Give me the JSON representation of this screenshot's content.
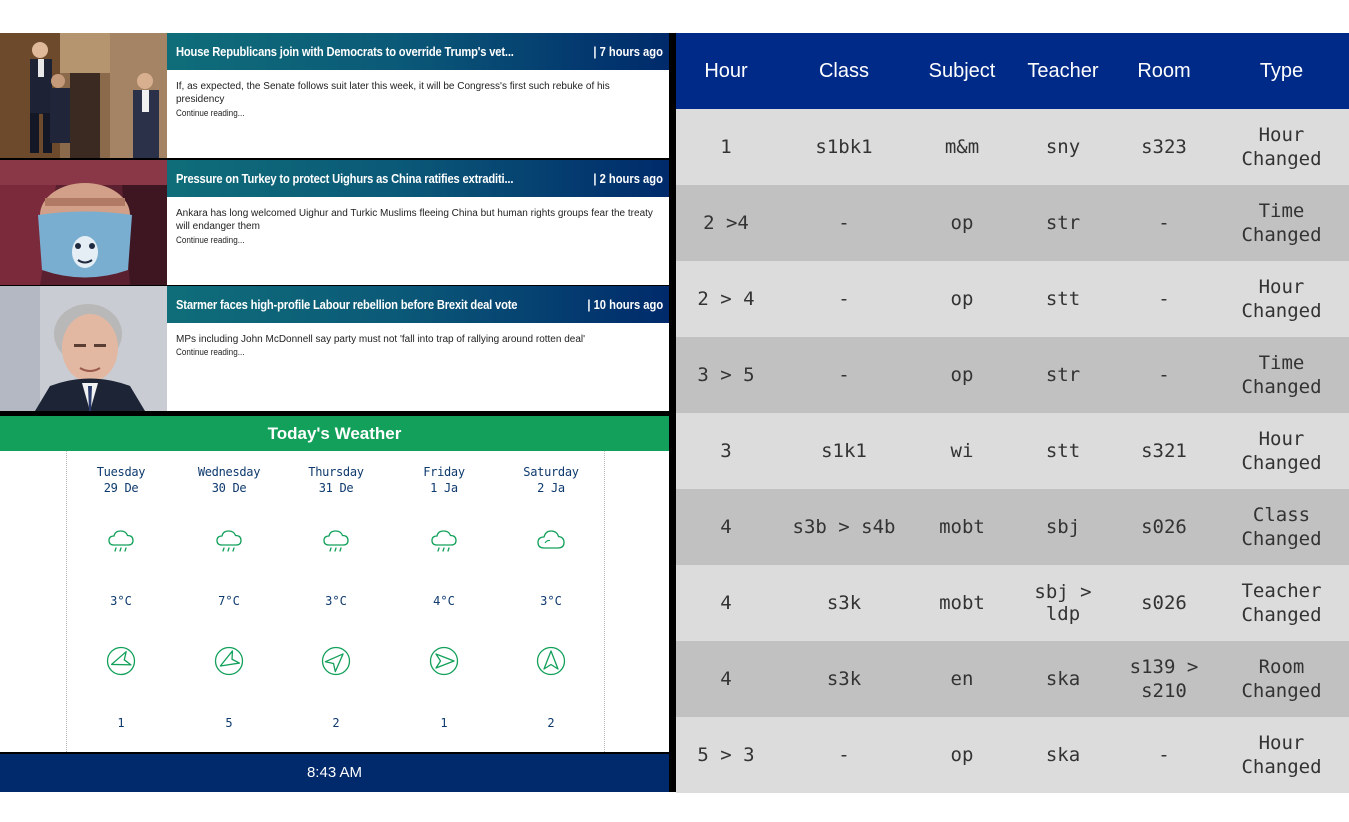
{
  "news": [
    {
      "title": "House Republicans join with Democrats to override Trump's vet...",
      "time": "| 7 hours ago",
      "body": "If, as expected, the Senate follows suit later this week, it will be Congress's first such rebuke of his presidency",
      "more": "Continue reading..."
    },
    {
      "title": "Pressure on Turkey to protect Uighurs as China ratifies extraditi...",
      "time": "| 2 hours ago",
      "body": "Ankara has long welcomed Uighur and Turkic Muslims fleeing China but human rights groups fear the treaty will endanger them",
      "more": "Continue reading..."
    },
    {
      "title": "Starmer faces high-profile Labour rebellion before Brexit deal vote",
      "time": "| 10 hours ago",
      "body": "MPs including John McDonnell say party must not 'fall into trap of rallying around rotten deal'",
      "more": "Continue reading..."
    }
  ],
  "weather": {
    "title": "Today's Weather",
    "days": [
      {
        "name": "Tuesday",
        "date": "29 De",
        "icon": "rain-cloud-icon",
        "temp": "3°C",
        "wind_icon": "wind-direction-icon",
        "wind_deg": 250,
        "wind": "1"
      },
      {
        "name": "Wednesday",
        "date": "30 De",
        "icon": "rain-cloud-icon",
        "temp": "7°C",
        "wind_icon": "wind-direction-icon",
        "wind_deg": 240,
        "wind": "5"
      },
      {
        "name": "Thursday",
        "date": "31 De",
        "icon": "rain-cloud-icon",
        "temp": "3°C",
        "wind_icon": "wind-direction-icon",
        "wind_deg": 45,
        "wind": "2"
      },
      {
        "name": "Friday",
        "date": "1 Ja",
        "icon": "rain-cloud-icon",
        "temp": "4°C",
        "wind_icon": "wind-direction-icon",
        "wind_deg": 90,
        "wind": "1"
      },
      {
        "name": "Saturday",
        "date": "2 Ja",
        "icon": "cloud-icon",
        "temp": "3°C",
        "wind_icon": "wind-direction-icon",
        "wind_deg": 0,
        "wind": "2"
      }
    ]
  },
  "clock": "8:43 AM",
  "timetable": {
    "headers": [
      "Hour",
      "Class",
      "Subject",
      "Teacher",
      "Room",
      "Type"
    ],
    "rows": [
      [
        "1",
        "s1bk1",
        "m&m",
        "sny",
        "s323",
        "Hour",
        "Changed"
      ],
      [
        "2 >4",
        "-",
        "op",
        "str",
        "-",
        "Time",
        "Changed"
      ],
      [
        "2 > 4",
        "-",
        "op",
        "stt",
        "-",
        "Hour",
        "Changed"
      ],
      [
        "3 > 5",
        "-",
        "op",
        "str",
        "-",
        "Time",
        "Changed"
      ],
      [
        "3",
        "s1k1",
        "wi",
        "stt",
        "s321",
        "Hour",
        "Changed"
      ],
      [
        "4",
        "s3b > s4b",
        "mobt",
        "sbj",
        "s026",
        "Class",
        "Changed"
      ],
      [
        "4",
        "s3k",
        "mobt",
        "sbj > ldp",
        "s026",
        "Teacher",
        "Changed"
      ],
      [
        "4",
        "s3k",
        "en",
        "ska",
        "s139 > s210",
        "Room",
        "Changed"
      ],
      [
        "5 > 3",
        "-",
        "op",
        "ska",
        "-",
        "Hour",
        "Changed"
      ]
    ]
  },
  "colors": {
    "news_gradient_start": "#0f6d79",
    "news_gradient_end": "#002a6b",
    "weather_header": "#12a05a",
    "weather_text": "#0e3a6e",
    "icon_stroke": "#12a05a",
    "timetable_header": "#002a87",
    "row_light": "#dcdcdc",
    "row_dark": "#c1c1c1"
  }
}
